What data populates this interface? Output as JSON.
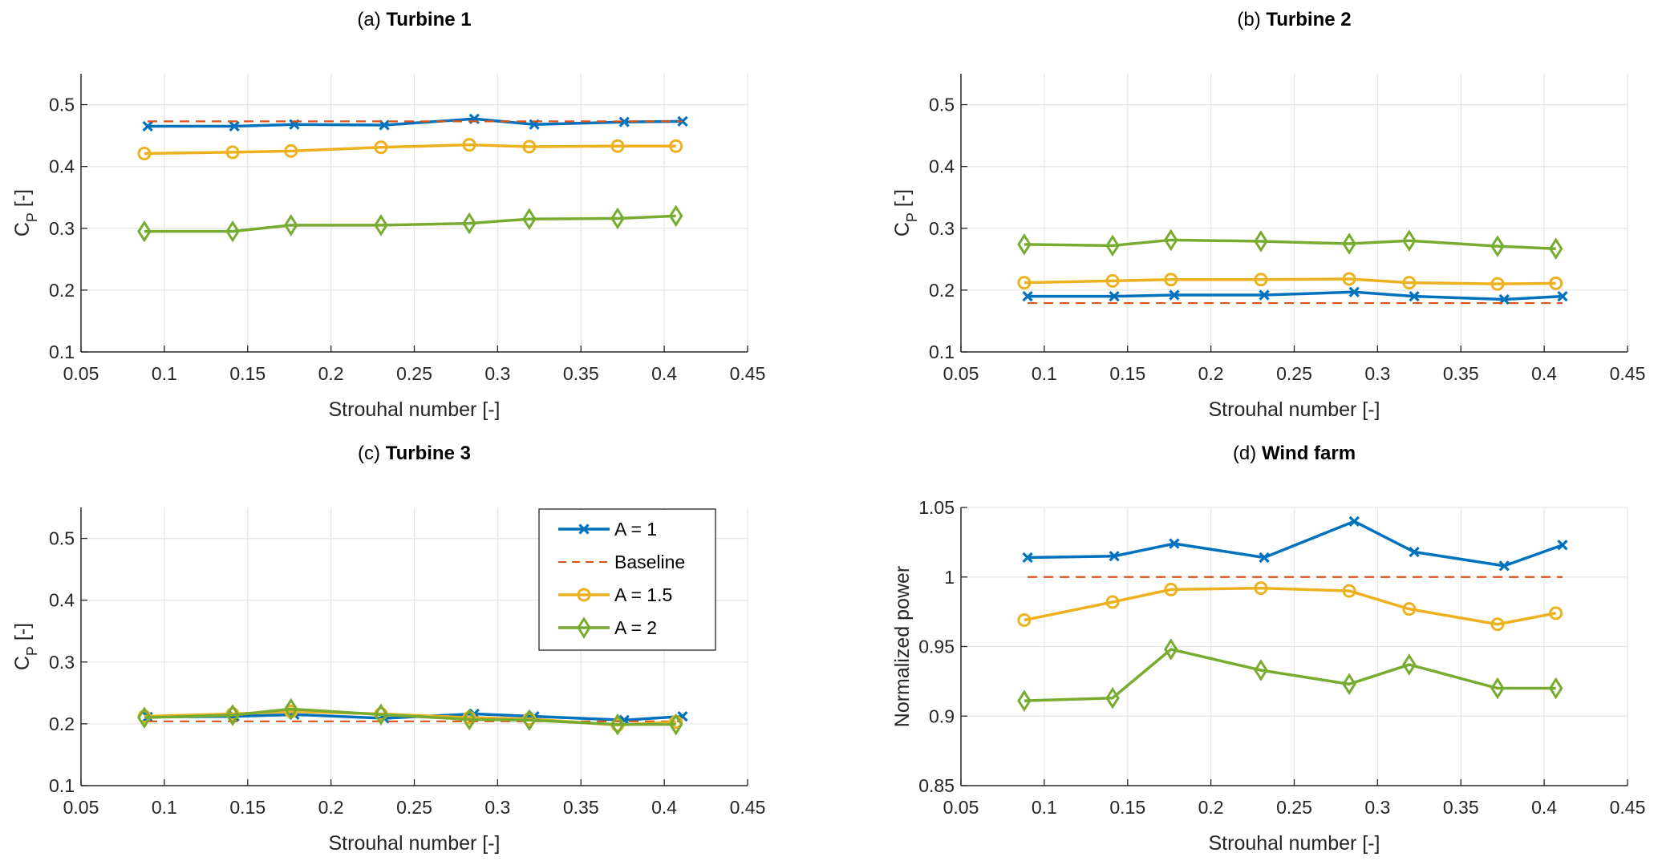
{
  "chart_data": [
    {
      "type": "line",
      "panel_label": "(a)",
      "title": "Turbine 1",
      "xlabel": "Strouhal number [-]",
      "ylabel": "C_P [-]",
      "xlim": [
        0.05,
        0.45
      ],
      "ylim": [
        0.1,
        0.55
      ],
      "xticks": [
        0.05,
        0.1,
        0.15,
        0.2,
        0.25,
        0.3,
        0.35,
        0.4,
        0.45
      ],
      "xtick_labels": [
        "0.05",
        "0.1",
        "0.15",
        "0.2",
        "0.25",
        "0.3",
        "0.35",
        "0.4",
        "0.45"
      ],
      "yticks": [
        0.1,
        0.2,
        0.3,
        0.4,
        0.5
      ],
      "ytick_labels": [
        "0.1",
        "0.2",
        "0.3",
        "0.4",
        "0.5"
      ],
      "grid": true,
      "legend": null,
      "series": [
        {
          "name": "A = 1",
          "style": "line-x",
          "x": [
            0.09,
            0.142,
            0.178,
            0.232,
            0.286,
            0.322,
            0.376,
            0.411
          ],
          "values": [
            0.465,
            0.465,
            0.468,
            0.467,
            0.477,
            0.468,
            0.472,
            0.473
          ]
        },
        {
          "name": "Baseline",
          "style": "dashed",
          "x": [
            0.09,
            0.411
          ],
          "values": [
            0.473,
            0.473
          ]
        },
        {
          "name": "A = 1.5",
          "style": "line-circle",
          "x": [
            0.088,
            0.141,
            0.176,
            0.23,
            0.283,
            0.319,
            0.372,
            0.407
          ],
          "values": [
            0.421,
            0.423,
            0.425,
            0.431,
            0.435,
            0.432,
            0.433,
            0.433
          ]
        },
        {
          "name": "A = 2",
          "style": "line-diamond",
          "x": [
            0.088,
            0.141,
            0.176,
            0.23,
            0.283,
            0.319,
            0.372,
            0.407
          ],
          "values": [
            0.295,
            0.295,
            0.305,
            0.305,
            0.308,
            0.315,
            0.316,
            0.32
          ]
        }
      ]
    },
    {
      "type": "line",
      "panel_label": "(b)",
      "title": "Turbine 2",
      "xlabel": "Strouhal number [-]",
      "ylabel": "C_P [-]",
      "xlim": [
        0.05,
        0.45
      ],
      "ylim": [
        0.1,
        0.55
      ],
      "xticks": [
        0.05,
        0.1,
        0.15,
        0.2,
        0.25,
        0.3,
        0.35,
        0.4,
        0.45
      ],
      "xtick_labels": [
        "0.05",
        "0.1",
        "0.15",
        "0.2",
        "0.25",
        "0.3",
        "0.35",
        "0.4",
        "0.45"
      ],
      "yticks": [
        0.1,
        0.2,
        0.3,
        0.4,
        0.5
      ],
      "ytick_labels": [
        "0.1",
        "0.2",
        "0.3",
        "0.4",
        "0.5"
      ],
      "grid": true,
      "legend": null,
      "series": [
        {
          "name": "A = 1",
          "style": "line-x",
          "x": [
            0.09,
            0.142,
            0.178,
            0.232,
            0.286,
            0.322,
            0.376,
            0.411
          ],
          "values": [
            0.19,
            0.19,
            0.192,
            0.192,
            0.197,
            0.19,
            0.185,
            0.19
          ]
        },
        {
          "name": "Baseline",
          "style": "dashed",
          "x": [
            0.09,
            0.411
          ],
          "values": [
            0.179,
            0.179
          ]
        },
        {
          "name": "A = 1.5",
          "style": "line-circle",
          "x": [
            0.088,
            0.141,
            0.176,
            0.23,
            0.283,
            0.319,
            0.372,
            0.407
          ],
          "values": [
            0.212,
            0.215,
            0.217,
            0.217,
            0.218,
            0.212,
            0.21,
            0.211
          ]
        },
        {
          "name": "A = 2",
          "style": "line-diamond",
          "x": [
            0.088,
            0.141,
            0.176,
            0.23,
            0.283,
            0.319,
            0.372,
            0.407
          ],
          "values": [
            0.274,
            0.272,
            0.281,
            0.279,
            0.275,
            0.28,
            0.271,
            0.267
          ]
        }
      ]
    },
    {
      "type": "line",
      "panel_label": "(c)",
      "title": "Turbine 3",
      "xlabel": "Strouhal number [-]",
      "ylabel": "C_P [-]",
      "xlim": [
        0.05,
        0.45
      ],
      "ylim": [
        0.1,
        0.55
      ],
      "xticks": [
        0.05,
        0.1,
        0.15,
        0.2,
        0.25,
        0.3,
        0.35,
        0.4,
        0.45
      ],
      "xtick_labels": [
        "0.05",
        "0.1",
        "0.15",
        "0.2",
        "0.25",
        "0.3",
        "0.35",
        "0.4",
        "0.45"
      ],
      "yticks": [
        0.1,
        0.2,
        0.3,
        0.4,
        0.5
      ],
      "ytick_labels": [
        "0.1",
        "0.2",
        "0.3",
        "0.4",
        "0.5"
      ],
      "grid": true,
      "legend": "top-right",
      "series": [
        {
          "name": "A = 1",
          "style": "line-x",
          "x": [
            0.09,
            0.142,
            0.178,
            0.232,
            0.286,
            0.322,
            0.376,
            0.411
          ],
          "values": [
            0.211,
            0.212,
            0.215,
            0.209,
            0.216,
            0.212,
            0.206,
            0.212
          ]
        },
        {
          "name": "Baseline",
          "style": "dashed",
          "x": [
            0.09,
            0.411
          ],
          "values": [
            0.204,
            0.204
          ]
        },
        {
          "name": "A = 1.5",
          "style": "line-circle",
          "x": [
            0.088,
            0.141,
            0.176,
            0.23,
            0.283,
            0.319,
            0.372,
            0.407
          ],
          "values": [
            0.212,
            0.216,
            0.22,
            0.216,
            0.21,
            0.208,
            0.198,
            0.203
          ]
        },
        {
          "name": "A = 2",
          "style": "line-diamond",
          "x": [
            0.088,
            0.141,
            0.176,
            0.23,
            0.283,
            0.319,
            0.372,
            0.407
          ],
          "values": [
            0.21,
            0.214,
            0.224,
            0.215,
            0.207,
            0.206,
            0.199,
            0.199
          ]
        }
      ]
    },
    {
      "type": "line",
      "panel_label": "(d)",
      "title": "Wind farm",
      "xlabel": "Strouhal number [-]",
      "ylabel": "Normalized power",
      "xlim": [
        0.05,
        0.45
      ],
      "ylim": [
        0.85,
        1.05
      ],
      "xticks": [
        0.05,
        0.1,
        0.15,
        0.2,
        0.25,
        0.3,
        0.35,
        0.4,
        0.45
      ],
      "xtick_labels": [
        "0.05",
        "0.1",
        "0.15",
        "0.2",
        "0.25",
        "0.3",
        "0.35",
        "0.4",
        "0.45"
      ],
      "yticks": [
        0.85,
        0.9,
        0.95,
        1.0,
        1.05
      ],
      "ytick_labels": [
        "0.85",
        "0.9",
        "0.95",
        "1",
        "1.05"
      ],
      "grid": true,
      "legend": null,
      "series": [
        {
          "name": "A = 1",
          "style": "line-x",
          "x": [
            0.09,
            0.142,
            0.178,
            0.232,
            0.286,
            0.322,
            0.376,
            0.411
          ],
          "values": [
            1.014,
            1.015,
            1.024,
            1.014,
            1.04,
            1.018,
            1.008,
            1.023
          ]
        },
        {
          "name": "Baseline",
          "style": "dashed",
          "x": [
            0.09,
            0.411
          ],
          "values": [
            1.0,
            1.0
          ]
        },
        {
          "name": "A = 1.5",
          "style": "line-circle",
          "x": [
            0.088,
            0.141,
            0.176,
            0.23,
            0.283,
            0.319,
            0.372,
            0.407
          ],
          "values": [
            0.969,
            0.982,
            0.991,
            0.992,
            0.99,
            0.977,
            0.966,
            0.974
          ]
        },
        {
          "name": "A = 2",
          "style": "line-diamond",
          "x": [
            0.088,
            0.141,
            0.176,
            0.23,
            0.283,
            0.319,
            0.372,
            0.407
          ],
          "values": [
            0.911,
            0.913,
            0.948,
            0.933,
            0.923,
            0.937,
            0.92,
            0.92
          ]
        }
      ]
    }
  ],
  "series_colors": {
    "A = 1": "#0072BD",
    "Baseline": "#D95319",
    "A = 1.5": "#EDB120",
    "A = 2": "#77AC30"
  },
  "legend_entries": [
    "A = 1",
    "Baseline",
    "A = 1.5",
    "A = 2"
  ]
}
